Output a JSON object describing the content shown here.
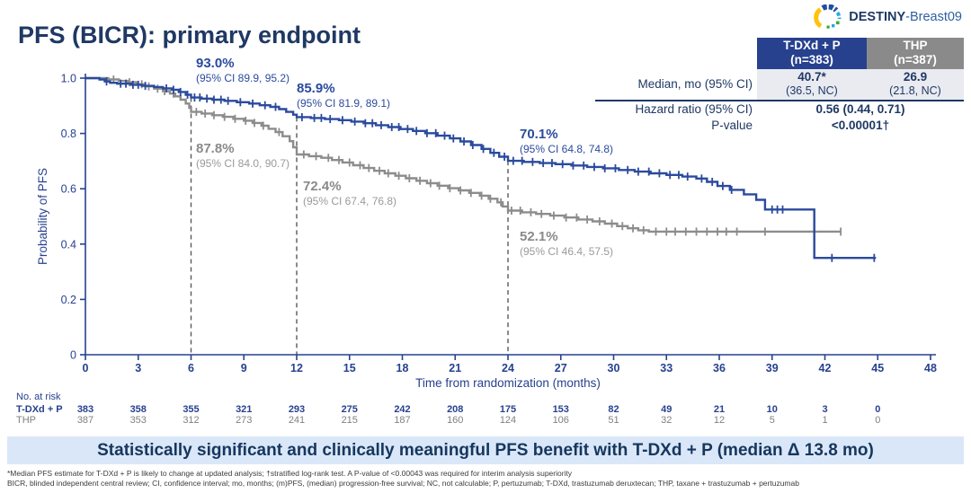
{
  "logo": {
    "bold": "DESTINY",
    "light": "-Breast09"
  },
  "title": "PFS (BICR): primary endpoint",
  "stats_table": {
    "columns": [
      {
        "name": "T-DXd + P",
        "n": "(n=383)"
      },
      {
        "name": "THP",
        "n": "(n=387)"
      }
    ],
    "rows": {
      "median": {
        "label": "Median, mo (95% CI)",
        "col1_value": "40.7*",
        "col1_ci": "(36.5, NC)",
        "col2_value": "26.9",
        "col2_ci": "(21.8, NC)"
      },
      "hazard": {
        "label": "Hazard ratio (95% CI)",
        "value": "0.56 (0.44, 0.71)"
      },
      "pvalue": {
        "label": "P-value",
        "value": "<0.00001†"
      }
    }
  },
  "chart_data": {
    "type": "line",
    "subtype": "kaplan-meier-step",
    "title": "",
    "xlabel": "Time from randomization (months)",
    "ylabel": "Probability of PFS",
    "xlim": [
      0,
      48
    ],
    "ylim": [
      0,
      1.0
    ],
    "x_ticks": [
      0,
      3,
      6,
      9,
      12,
      15,
      18,
      21,
      24,
      27,
      30,
      33,
      36,
      39,
      42,
      45,
      48
    ],
    "y_ticks": [
      {
        "v": 1.0,
        "label": "1.0"
      },
      {
        "v": 0.8,
        "label": "0.8"
      },
      {
        "v": 0.6,
        "label": "0.6"
      },
      {
        "v": 0.4,
        "label": "0.4"
      },
      {
        "v": 0.2,
        "label": "0.2"
      },
      {
        "v": 0.0,
        "label": "0"
      }
    ],
    "grid": false,
    "dashed_lines_at_months": [
      6,
      12,
      24
    ],
    "axis_color": "#27418f",
    "series": [
      {
        "name": "T-DXd + P",
        "color": "#2a4a9d",
        "steps": [
          [
            0,
            1
          ],
          [
            0.8,
            0.995
          ],
          [
            1.1,
            0.988
          ],
          [
            1.4,
            0.983
          ],
          [
            1.8,
            0.98
          ],
          [
            2.6,
            0.976
          ],
          [
            3.2,
            0.972
          ],
          [
            3.9,
            0.968
          ],
          [
            4.4,
            0.963
          ],
          [
            4.9,
            0.958
          ],
          [
            5.3,
            0.95
          ],
          [
            5.7,
            0.94
          ],
          [
            6,
            0.93
          ],
          [
            6.6,
            0.926
          ],
          [
            7.2,
            0.922
          ],
          [
            7.9,
            0.918
          ],
          [
            8.6,
            0.913
          ],
          [
            9.3,
            0.908
          ],
          [
            9.9,
            0.902
          ],
          [
            10.5,
            0.896
          ],
          [
            11,
            0.888
          ],
          [
            11.4,
            0.878
          ],
          [
            11.8,
            0.868
          ],
          [
            12,
            0.859
          ],
          [
            12.8,
            0.856
          ],
          [
            13.6,
            0.852
          ],
          [
            14.4,
            0.848
          ],
          [
            15.1,
            0.843
          ],
          [
            15.8,
            0.837
          ],
          [
            16.5,
            0.83
          ],
          [
            17.2,
            0.823
          ],
          [
            17.9,
            0.816
          ],
          [
            18.6,
            0.809
          ],
          [
            19.3,
            0.801
          ],
          [
            20,
            0.792
          ],
          [
            20.7,
            0.782
          ],
          [
            21.3,
            0.771
          ],
          [
            21.9,
            0.758
          ],
          [
            22.5,
            0.744
          ],
          [
            23,
            0.73
          ],
          [
            23.5,
            0.716
          ],
          [
            24,
            0.701
          ],
          [
            24.9,
            0.697
          ],
          [
            25.8,
            0.693
          ],
          [
            26.7,
            0.689
          ],
          [
            27.6,
            0.684
          ],
          [
            28.5,
            0.679
          ],
          [
            29.4,
            0.674
          ],
          [
            30.3,
            0.668
          ],
          [
            31.2,
            0.662
          ],
          [
            32.1,
            0.656
          ],
          [
            33,
            0.65
          ],
          [
            33.9,
            0.644
          ],
          [
            34.7,
            0.637
          ],
          [
            35.3,
            0.625
          ],
          [
            35.9,
            0.61
          ],
          [
            36.6,
            0.596
          ],
          [
            37.4,
            0.58
          ],
          [
            38.1,
            0.56
          ],
          [
            38.6,
            0.525
          ],
          [
            41.4,
            0.35
          ],
          [
            44.9,
            0.35
          ]
        ],
        "censor_months": [
          1.2,
          2.0,
          2.3,
          2.7,
          3.0,
          3.4,
          4.6,
          5.0,
          5.4,
          5.8,
          6.2,
          6.5,
          6.9,
          7.3,
          7.7,
          8.1,
          8.8,
          9.5,
          10.2,
          10.8,
          12.3,
          13.0,
          13.4,
          13.9,
          14.6,
          15.3,
          15.9,
          16.3,
          16.8,
          17.4,
          17.8,
          18.3,
          18.8,
          19.4,
          19.9,
          20.4,
          20.9,
          21.5,
          22.0,
          22.6,
          23.2,
          23.8,
          24.3,
          24.8,
          25.4,
          26.0,
          26.5,
          27.1,
          27.7,
          28.3,
          28.9,
          29.5,
          30.1,
          30.8,
          31.4,
          32.0,
          32.6,
          33.2,
          33.7,
          34.2,
          35.0,
          35.6,
          36.2,
          36.7,
          39.0,
          39.3,
          39.6,
          42.4,
          44.8
        ]
      },
      {
        "name": "THP",
        "color": "#8c8c8c",
        "steps": [
          [
            0,
            1
          ],
          [
            1.3,
            0.995
          ],
          [
            1.9,
            0.99
          ],
          [
            2.4,
            0.985
          ],
          [
            2.9,
            0.978
          ],
          [
            3.4,
            0.97
          ],
          [
            3.9,
            0.962
          ],
          [
            4.4,
            0.953
          ],
          [
            4.8,
            0.944
          ],
          [
            5.1,
            0.934
          ],
          [
            5.4,
            0.922
          ],
          [
            5.7,
            0.908
          ],
          [
            5.9,
            0.893
          ],
          [
            6,
            0.878
          ],
          [
            6.6,
            0.872
          ],
          [
            7.2,
            0.866
          ],
          [
            7.8,
            0.86
          ],
          [
            8.4,
            0.853
          ],
          [
            9,
            0.846
          ],
          [
            9.5,
            0.838
          ],
          [
            10,
            0.828
          ],
          [
            10.4,
            0.817
          ],
          [
            10.8,
            0.805
          ],
          [
            11.2,
            0.79
          ],
          [
            11.6,
            0.772
          ],
          [
            11.8,
            0.75
          ],
          [
            12,
            0.724
          ],
          [
            12.7,
            0.718
          ],
          [
            13.4,
            0.712
          ],
          [
            14,
            0.704
          ],
          [
            14.6,
            0.695
          ],
          [
            15.2,
            0.685
          ],
          [
            15.8,
            0.675
          ],
          [
            16.4,
            0.665
          ],
          [
            17,
            0.656
          ],
          [
            17.6,
            0.647
          ],
          [
            18.2,
            0.638
          ],
          [
            18.8,
            0.629
          ],
          [
            19.4,
            0.62
          ],
          [
            20,
            0.611
          ],
          [
            20.6,
            0.602
          ],
          [
            21.2,
            0.594
          ],
          [
            21.8,
            0.585
          ],
          [
            22.4,
            0.575
          ],
          [
            22.9,
            0.564
          ],
          [
            23.4,
            0.551
          ],
          [
            23.7,
            0.536
          ],
          [
            24,
            0.521
          ],
          [
            24.8,
            0.515
          ],
          [
            25.6,
            0.509
          ],
          [
            26.4,
            0.503
          ],
          [
            27.2,
            0.496
          ],
          [
            28,
            0.489
          ],
          [
            28.8,
            0.482
          ],
          [
            29.5,
            0.474
          ],
          [
            30.2,
            0.465
          ],
          [
            30.8,
            0.457
          ],
          [
            31.4,
            0.45
          ],
          [
            32,
            0.445
          ],
          [
            42.9,
            0.445
          ]
        ],
        "censor_months": [
          1.6,
          2.5,
          3.2,
          3.6,
          4.1,
          4.5,
          5.0,
          6.3,
          6.8,
          7.3,
          7.9,
          8.5,
          9.1,
          9.6,
          10.1,
          11.0,
          12.4,
          13.1,
          13.8,
          14.4,
          15.0,
          15.6,
          16.1,
          16.7,
          17.2,
          17.8,
          18.4,
          19.0,
          19.6,
          20.1,
          20.7,
          21.3,
          21.9,
          22.5,
          23.0,
          23.6,
          24.2,
          24.7,
          25.3,
          25.9,
          26.6,
          27.3,
          27.9,
          28.5,
          29.2,
          29.9,
          30.5,
          31.1,
          31.7,
          32.4,
          33.0,
          33.5,
          34.1,
          34.7,
          35.3,
          35.9,
          36.4,
          37.0,
          38.6,
          42.9
        ]
      }
    ],
    "annotations": [
      {
        "group": "T-DXd + P",
        "month": 6,
        "pct": "93.0%",
        "ci": "(95% CI 89.9, 95.2)"
      },
      {
        "group": "T-DXd + P",
        "month": 12,
        "pct": "85.9%",
        "ci": "(95% CI 81.9, 89.1)"
      },
      {
        "group": "T-DXd + P",
        "month": 24,
        "pct": "70.1%",
        "ci": "(95% CI 64.8, 74.8)"
      },
      {
        "group": "THP",
        "month": 6,
        "pct": "87.8%",
        "ci": "(95% CI 84.0, 90.7)"
      },
      {
        "group": "THP",
        "month": 12,
        "pct": "72.4%",
        "ci": "(95% CI 67.4, 76.8)"
      },
      {
        "group": "THP",
        "month": 24,
        "pct": "52.1%",
        "ci": "(95% CI 46.4, 57.5)"
      }
    ]
  },
  "at_risk": {
    "title": "No. at risk",
    "months": [
      0,
      3,
      6,
      9,
      12,
      15,
      18,
      21,
      24,
      27,
      30,
      33,
      36,
      39,
      42,
      45
    ],
    "groups": [
      {
        "label": "T-DXd + P",
        "color": "#27418f",
        "values": [
          "383",
          "358",
          "355",
          "321",
          "293",
          "275",
          "242",
          "208",
          "175",
          "153",
          "82",
          "49",
          "21",
          "10",
          "3",
          "0"
        ]
      },
      {
        "label": "THP",
        "color": "#808080",
        "values": [
          "387",
          "353",
          "312",
          "273",
          "241",
          "215",
          "187",
          "160",
          "124",
          "106",
          "51",
          "32",
          "12",
          "5",
          "1",
          "0"
        ]
      }
    ]
  },
  "banner": {
    "text": "Statistically significant and clinically meaningful PFS benefit with T-DXd + P (median Δ 13.8 mo)"
  },
  "footnotes": [
    "*Median PFS estimate for T-DXd + P is likely to change at updated analysis; †stratified log-rank test. A P-value of <0.00043 was required for interim analysis superiority",
    "BICR, blinded independent central review; CI, confidence interval; mo, months; (m)PFS, (median) progression-free survival; NC, not calculable; P, pertuzumab; T-DXd, trastuzumab deruxtecan; THP, taxane + trastuzumab + pertuzumab"
  ]
}
